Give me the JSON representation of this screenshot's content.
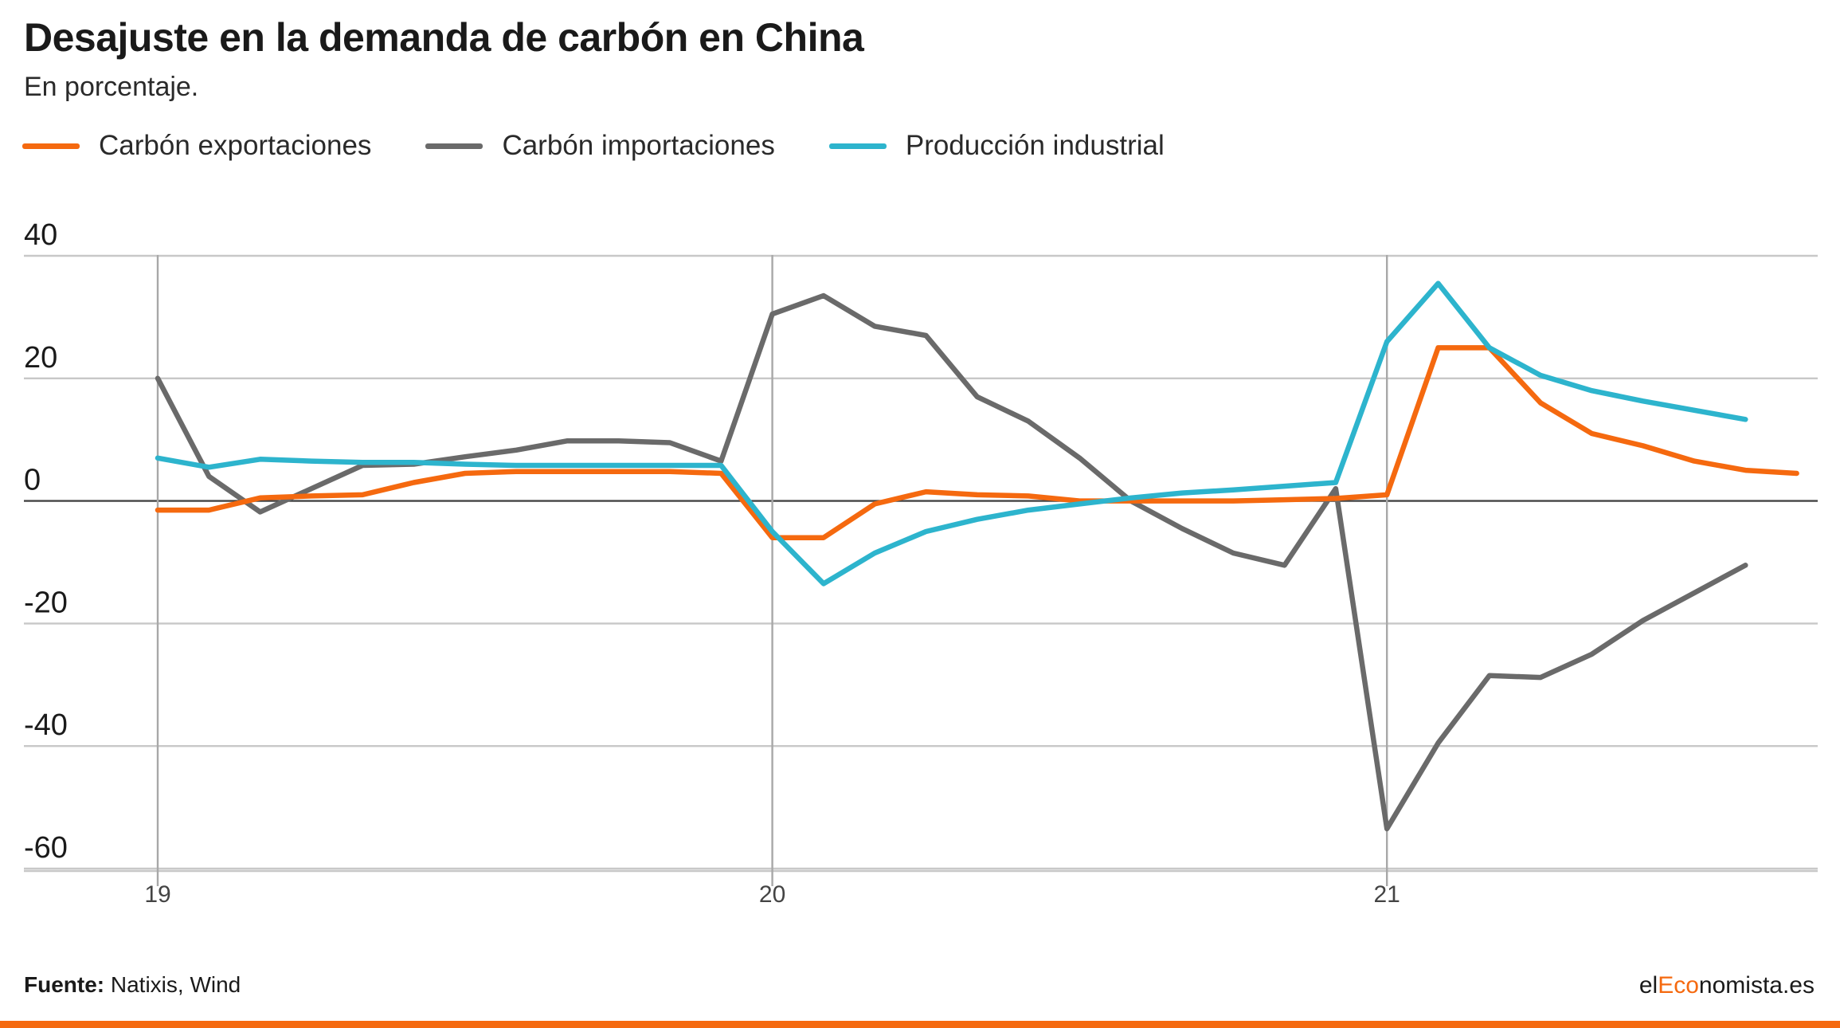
{
  "header": {
    "title": "Desajuste en la demanda de carbón en China",
    "subtitle": "En porcentaje."
  },
  "chart_data": {
    "type": "line",
    "title": "Desajuste en la demanda de carbón en China",
    "subtitle": "En porcentaje.",
    "xlabel": "",
    "ylabel": "",
    "x_ticks": [
      "19",
      "20",
      "21"
    ],
    "y_ticks": [
      "40",
      "20",
      "0",
      "-20",
      "-40",
      "-60"
    ],
    "ylim": [
      -60,
      40
    ],
    "grid": true,
    "legend_position": "top-left",
    "x_start": "2019-01",
    "x_end_month_index": 33,
    "series": [
      {
        "name": "Carbón exportaciones",
        "color": "#f5690f",
        "points": [
          [
            0,
            -1.5
          ],
          [
            1,
            -1.5
          ],
          [
            2,
            0.5
          ],
          [
            3,
            0.8
          ],
          [
            4,
            1
          ],
          [
            5,
            3
          ],
          [
            6,
            4.5
          ],
          [
            7,
            4.8
          ],
          [
            8,
            4.8
          ],
          [
            9,
            4.8
          ],
          [
            10,
            4.8
          ],
          [
            11,
            4.5
          ],
          [
            12,
            -6
          ],
          [
            13,
            -6
          ],
          [
            14,
            -0.5
          ],
          [
            15,
            1.5
          ],
          [
            16,
            1.0
          ],
          [
            17,
            0.8
          ],
          [
            18,
            0
          ],
          [
            19,
            0
          ],
          [
            20,
            0
          ],
          [
            21,
            0
          ],
          [
            22,
            0.2
          ],
          [
            23,
            0.4
          ],
          [
            24,
            1
          ],
          [
            25,
            25
          ],
          [
            26,
            25
          ],
          [
            27,
            16
          ],
          [
            28,
            11
          ],
          [
            29,
            9
          ],
          [
            30,
            6.5
          ],
          [
            31,
            5
          ],
          [
            32,
            4.5
          ]
        ]
      },
      {
        "name": "Carbón importaciones",
        "color": "#6a6a6a",
        "points": [
          [
            0,
            20
          ],
          [
            1,
            4
          ],
          [
            2,
            -1.8
          ],
          [
            3,
            2
          ],
          [
            4,
            5.8
          ],
          [
            5,
            6
          ],
          [
            6,
            7.2
          ],
          [
            7,
            8.3
          ],
          [
            8,
            9.8
          ],
          [
            9,
            9.8
          ],
          [
            10,
            9.5
          ],
          [
            11,
            6.5
          ],
          [
            12,
            30.5
          ],
          [
            13,
            33.5
          ],
          [
            14,
            28.5
          ],
          [
            15,
            27
          ],
          [
            16,
            17
          ],
          [
            17,
            13
          ],
          [
            18,
            7
          ],
          [
            19,
            0
          ],
          [
            20,
            -4.5
          ],
          [
            21,
            -8.5
          ],
          [
            22,
            -10.5
          ],
          [
            23,
            2
          ],
          [
            24,
            -53.5
          ],
          [
            25,
            -39.5
          ],
          [
            26,
            -28.5
          ],
          [
            27,
            -28.8
          ],
          [
            28,
            -25
          ],
          [
            29,
            -19.5
          ],
          [
            30,
            -15
          ],
          [
            31,
            -10.5
          ]
        ]
      },
      {
        "name": "Producción industrial",
        "color": "#2db4cd",
        "points": [
          [
            0,
            7
          ],
          [
            1,
            5.5
          ],
          [
            2,
            6.8
          ],
          [
            3,
            6.5
          ],
          [
            4,
            6.3
          ],
          [
            5,
            6.3
          ],
          [
            6,
            6
          ],
          [
            7,
            5.8
          ],
          [
            8,
            5.8
          ],
          [
            9,
            5.8
          ],
          [
            10,
            5.8
          ],
          [
            11,
            5.8
          ],
          [
            12,
            -5
          ],
          [
            13,
            -13.5
          ],
          [
            14,
            -8.5
          ],
          [
            15,
            -5
          ],
          [
            16,
            -3
          ],
          [
            17,
            -1.5
          ],
          [
            18,
            -0.5
          ],
          [
            19,
            0.5
          ],
          [
            20,
            1.3
          ],
          [
            21,
            1.8
          ],
          [
            22,
            2.4
          ],
          [
            23,
            3
          ],
          [
            24,
            26
          ],
          [
            25,
            35.5
          ],
          [
            26,
            25
          ],
          [
            27,
            20.5
          ],
          [
            28,
            18
          ],
          [
            29,
            16.3
          ],
          [
            30,
            14.8
          ],
          [
            31,
            13.3
          ]
        ]
      }
    ]
  },
  "footer": {
    "source_label": "Fuente:",
    "source_text": " Natixis, Wind",
    "brand_part1": "el",
    "brand_part2": "Eco",
    "brand_part3": "nomista.es",
    "brand_accent_color": "#f5690f"
  },
  "colors": {
    "accent_bar": "#f5690f",
    "grid": "#c8c8c8",
    "zero_line": "#444444",
    "tick_text": "#1a1a1a"
  }
}
